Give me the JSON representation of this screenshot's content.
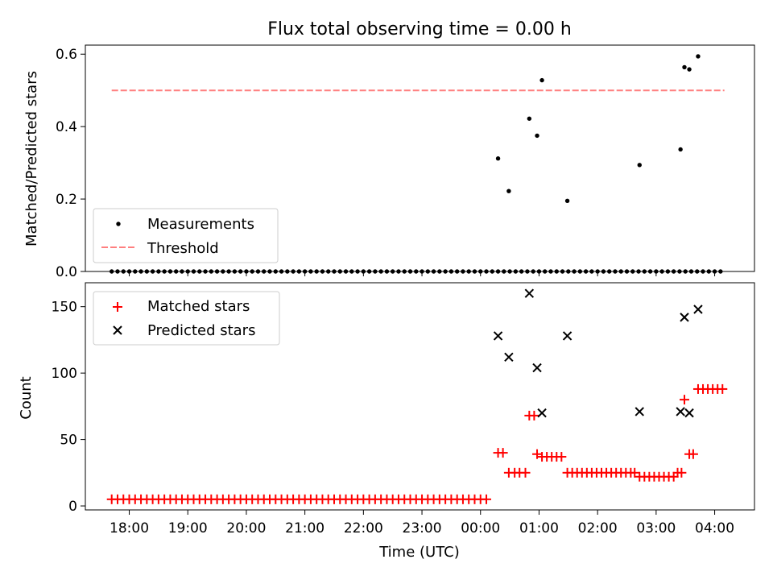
{
  "chart_data": [
    {
      "id": "ratio",
      "type": "scatter",
      "title": "Flux total observing time = 0.00 h",
      "ylabel": "Matched/Predicted stars",
      "xlabel": "",
      "ylim": [
        0,
        0.625
      ],
      "yticks": [
        0,
        0.2,
        0.4,
        0.6
      ],
      "ytick_labels": [
        "0.0",
        "0.2",
        "0.4",
        "0.6"
      ],
      "xlim": [
        17.25,
        4.68
      ],
      "legend_position": "lower-left",
      "series": [
        {
          "name": "Measurements",
          "kind": "scatter",
          "color": "#000000",
          "x": [
            "17:42",
            "17:48",
            "17:54",
            "18:00",
            "18:06",
            "18:12",
            "18:18",
            "18:24",
            "18:30",
            "18:36",
            "18:42",
            "18:48",
            "18:54",
            "19:00",
            "19:06",
            "19:12",
            "19:18",
            "19:24",
            "19:30",
            "19:36",
            "19:42",
            "19:48",
            "19:54",
            "20:00",
            "20:06",
            "20:12",
            "20:18",
            "20:24",
            "20:30",
            "20:36",
            "20:42",
            "20:48",
            "20:54",
            "21:00",
            "21:06",
            "21:12",
            "21:18",
            "21:24",
            "21:30",
            "21:36",
            "21:42",
            "21:48",
            "21:54",
            "22:00",
            "22:06",
            "22:12",
            "22:18",
            "22:24",
            "22:30",
            "22:36",
            "22:42",
            "22:48",
            "22:54",
            "23:00",
            "23:06",
            "23:12",
            "23:18",
            "23:24",
            "23:30",
            "23:36",
            "23:42",
            "23:48",
            "23:54",
            "00:00",
            "00:06",
            "00:12",
            "00:18",
            "00:24",
            "00:30",
            "00:36",
            "00:42",
            "00:48",
            "00:54",
            "01:00",
            "01:06",
            "01:12",
            "01:18",
            "01:24",
            "01:30",
            "01:36",
            "01:42",
            "01:48",
            "01:54",
            "02:00",
            "02:06",
            "02:12",
            "02:18",
            "02:24",
            "02:30",
            "02:36",
            "02:42",
            "02:48",
            "02:54",
            "03:00",
            "03:06",
            "03:12",
            "03:18",
            "03:24",
            "03:30",
            "03:36",
            "03:42",
            "03:48",
            "03:54",
            "04:00",
            "04:06",
            "00:18",
            "00:29",
            "00:50",
            "00:58",
            "01:03",
            "01:29",
            "02:43",
            "03:25",
            "03:29",
            "03:34",
            "03:43"
          ],
          "y": [
            0,
            0,
            0,
            0,
            0,
            0,
            0,
            0,
            0,
            0,
            0,
            0,
            0,
            0,
            0,
            0,
            0,
            0,
            0,
            0,
            0,
            0,
            0,
            0,
            0,
            0,
            0,
            0,
            0,
            0,
            0,
            0,
            0,
            0,
            0,
            0,
            0,
            0,
            0,
            0,
            0,
            0,
            0,
            0,
            0,
            0,
            0,
            0,
            0,
            0,
            0,
            0,
            0,
            0,
            0,
            0,
            0,
            0,
            0,
            0,
            0,
            0,
            0,
            0,
            0,
            0,
            0,
            0,
            0,
            0,
            0,
            0,
            0,
            0,
            0,
            0,
            0,
            0,
            0,
            0,
            0,
            0,
            0,
            0,
            0,
            0,
            0,
            0,
            0,
            0,
            0,
            0,
            0,
            0,
            0,
            0,
            0,
            0,
            0,
            0,
            0,
            0,
            0,
            0,
            0,
            0.312,
            0.222,
            0.422,
            0.375,
            0.528,
            0.195,
            0.294,
            0.337,
            0.564,
            0.558,
            0.594
          ]
        },
        {
          "name": "Threshold",
          "kind": "line",
          "color": "#ff7f7f",
          "dash": "dashed",
          "x": [
            "17:42",
            "04:10"
          ],
          "y": [
            0.5,
            0.5
          ]
        }
      ]
    },
    {
      "id": "counts",
      "type": "scatter",
      "title": "",
      "ylabel": "Count",
      "xlabel": "Time (UTC)",
      "ylim": [
        -3,
        168
      ],
      "yticks": [
        0,
        50,
        100,
        150
      ],
      "ytick_labels": [
        "0",
        "50",
        "100",
        "150"
      ],
      "xlim": [
        17.25,
        4.68
      ],
      "xticks": [
        "18:00",
        "19:00",
        "20:00",
        "21:00",
        "22:00",
        "23:00",
        "00:00",
        "01:00",
        "02:00",
        "03:00",
        "04:00"
      ],
      "legend_position": "upper-left",
      "series": [
        {
          "name": "Matched stars",
          "kind": "plus",
          "color": "#ff0000",
          "x": [
            "17:42",
            "17:48",
            "17:54",
            "18:00",
            "18:06",
            "18:12",
            "18:18",
            "18:24",
            "18:30",
            "18:36",
            "18:42",
            "18:48",
            "18:54",
            "19:00",
            "19:06",
            "19:12",
            "19:18",
            "19:24",
            "19:30",
            "19:36",
            "19:42",
            "19:48",
            "19:54",
            "20:00",
            "20:06",
            "20:12",
            "20:18",
            "20:24",
            "20:30",
            "20:36",
            "20:42",
            "20:48",
            "20:54",
            "21:00",
            "21:06",
            "21:12",
            "21:18",
            "21:24",
            "21:30",
            "21:36",
            "21:42",
            "21:48",
            "21:54",
            "22:00",
            "22:06",
            "22:12",
            "22:18",
            "22:24",
            "22:30",
            "22:36",
            "22:42",
            "22:48",
            "22:54",
            "23:00",
            "23:06",
            "23:12",
            "23:18",
            "23:24",
            "23:30",
            "23:36",
            "23:42",
            "23:48",
            "23:54",
            "00:00",
            "00:06",
            "00:18",
            "00:23",
            "00:29",
            "00:35",
            "00:40",
            "00:46",
            "00:50",
            "00:55",
            "00:58",
            "01:03",
            "01:08",
            "01:13",
            "01:18",
            "01:23",
            "01:29",
            "01:34",
            "01:39",
            "01:44",
            "01:49",
            "01:54",
            "01:59",
            "02:04",
            "02:09",
            "02:14",
            "02:19",
            "02:24",
            "02:29",
            "02:34",
            "02:38",
            "02:43",
            "02:48",
            "02:53",
            "02:58",
            "03:03",
            "03:08",
            "03:13",
            "03:18",
            "03:22",
            "03:26",
            "03:29",
            "03:34",
            "03:38",
            "03:43",
            "03:48",
            "03:53",
            "03:58",
            "04:03",
            "04:08"
          ],
          "y": [
            5,
            5,
            5,
            5,
            5,
            5,
            5,
            5,
            5,
            5,
            5,
            5,
            5,
            5,
            5,
            5,
            5,
            5,
            5,
            5,
            5,
            5,
            5,
            5,
            5,
            5,
            5,
            5,
            5,
            5,
            5,
            5,
            5,
            5,
            5,
            5,
            5,
            5,
            5,
            5,
            5,
            5,
            5,
            5,
            5,
            5,
            5,
            5,
            5,
            5,
            5,
            5,
            5,
            5,
            5,
            5,
            5,
            5,
            5,
            5,
            5,
            5,
            5,
            5,
            5,
            40,
            40,
            25,
            25,
            25,
            25,
            68,
            68,
            39,
            37,
            37,
            37,
            37,
            37,
            25,
            25,
            25,
            25,
            25,
            25,
            25,
            25,
            25,
            25,
            25,
            25,
            25,
            25,
            25,
            22,
            22,
            22,
            22,
            22,
            22,
            22,
            22,
            25,
            25,
            80,
            39,
            39,
            88,
            88,
            88,
            88,
            88,
            88
          ]
        },
        {
          "name": "Predicted stars",
          "kind": "cross",
          "color": "#000000",
          "x": [
            "00:18",
            "00:29",
            "00:50",
            "00:58",
            "01:03",
            "01:29",
            "02:43",
            "03:25",
            "03:29",
            "03:34",
            "03:43"
          ],
          "y": [
            128,
            112,
            160,
            104,
            70,
            128,
            71,
            71,
            142,
            70,
            148
          ]
        }
      ]
    }
  ]
}
